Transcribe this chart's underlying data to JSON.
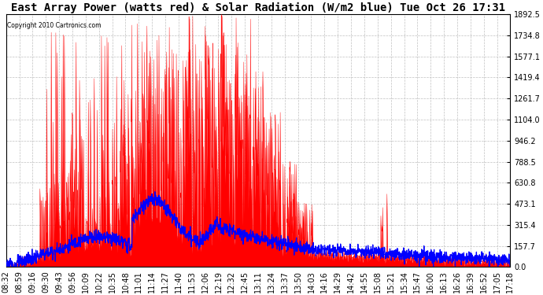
{
  "title": "East Array Power (watts red) & Solar Radiation (W/m2 blue) Tue Oct 26 17:31",
  "copyright": "Copyright 2010 Cartronics.com",
  "ymin": 0.0,
  "ymax": 1892.5,
  "yticks": [
    0.0,
    157.7,
    315.4,
    473.1,
    630.8,
    788.5,
    946.2,
    1104.0,
    1261.7,
    1419.4,
    1577.1,
    1734.8,
    1892.5
  ],
  "xtick_labels": [
    "08:32",
    "08:59",
    "09:16",
    "09:30",
    "09:43",
    "09:56",
    "10:09",
    "10:22",
    "10:35",
    "10:48",
    "11:01",
    "11:14",
    "11:27",
    "11:40",
    "11:53",
    "12:06",
    "12:19",
    "12:32",
    "12:45",
    "13:11",
    "13:24",
    "13:37",
    "13:50",
    "14:03",
    "14:16",
    "14:29",
    "14:42",
    "14:55",
    "15:08",
    "15:21",
    "15:34",
    "15:47",
    "16:00",
    "16:13",
    "16:26",
    "16:39",
    "16:52",
    "17:05",
    "17:18"
  ],
  "background_color": "#ffffff",
  "plot_bg_color": "#ffffff",
  "grid_color": "#c0c0c0",
  "red_color": "#ff0000",
  "blue_color": "#0000ff",
  "title_fontsize": 10,
  "tick_fontsize": 7
}
